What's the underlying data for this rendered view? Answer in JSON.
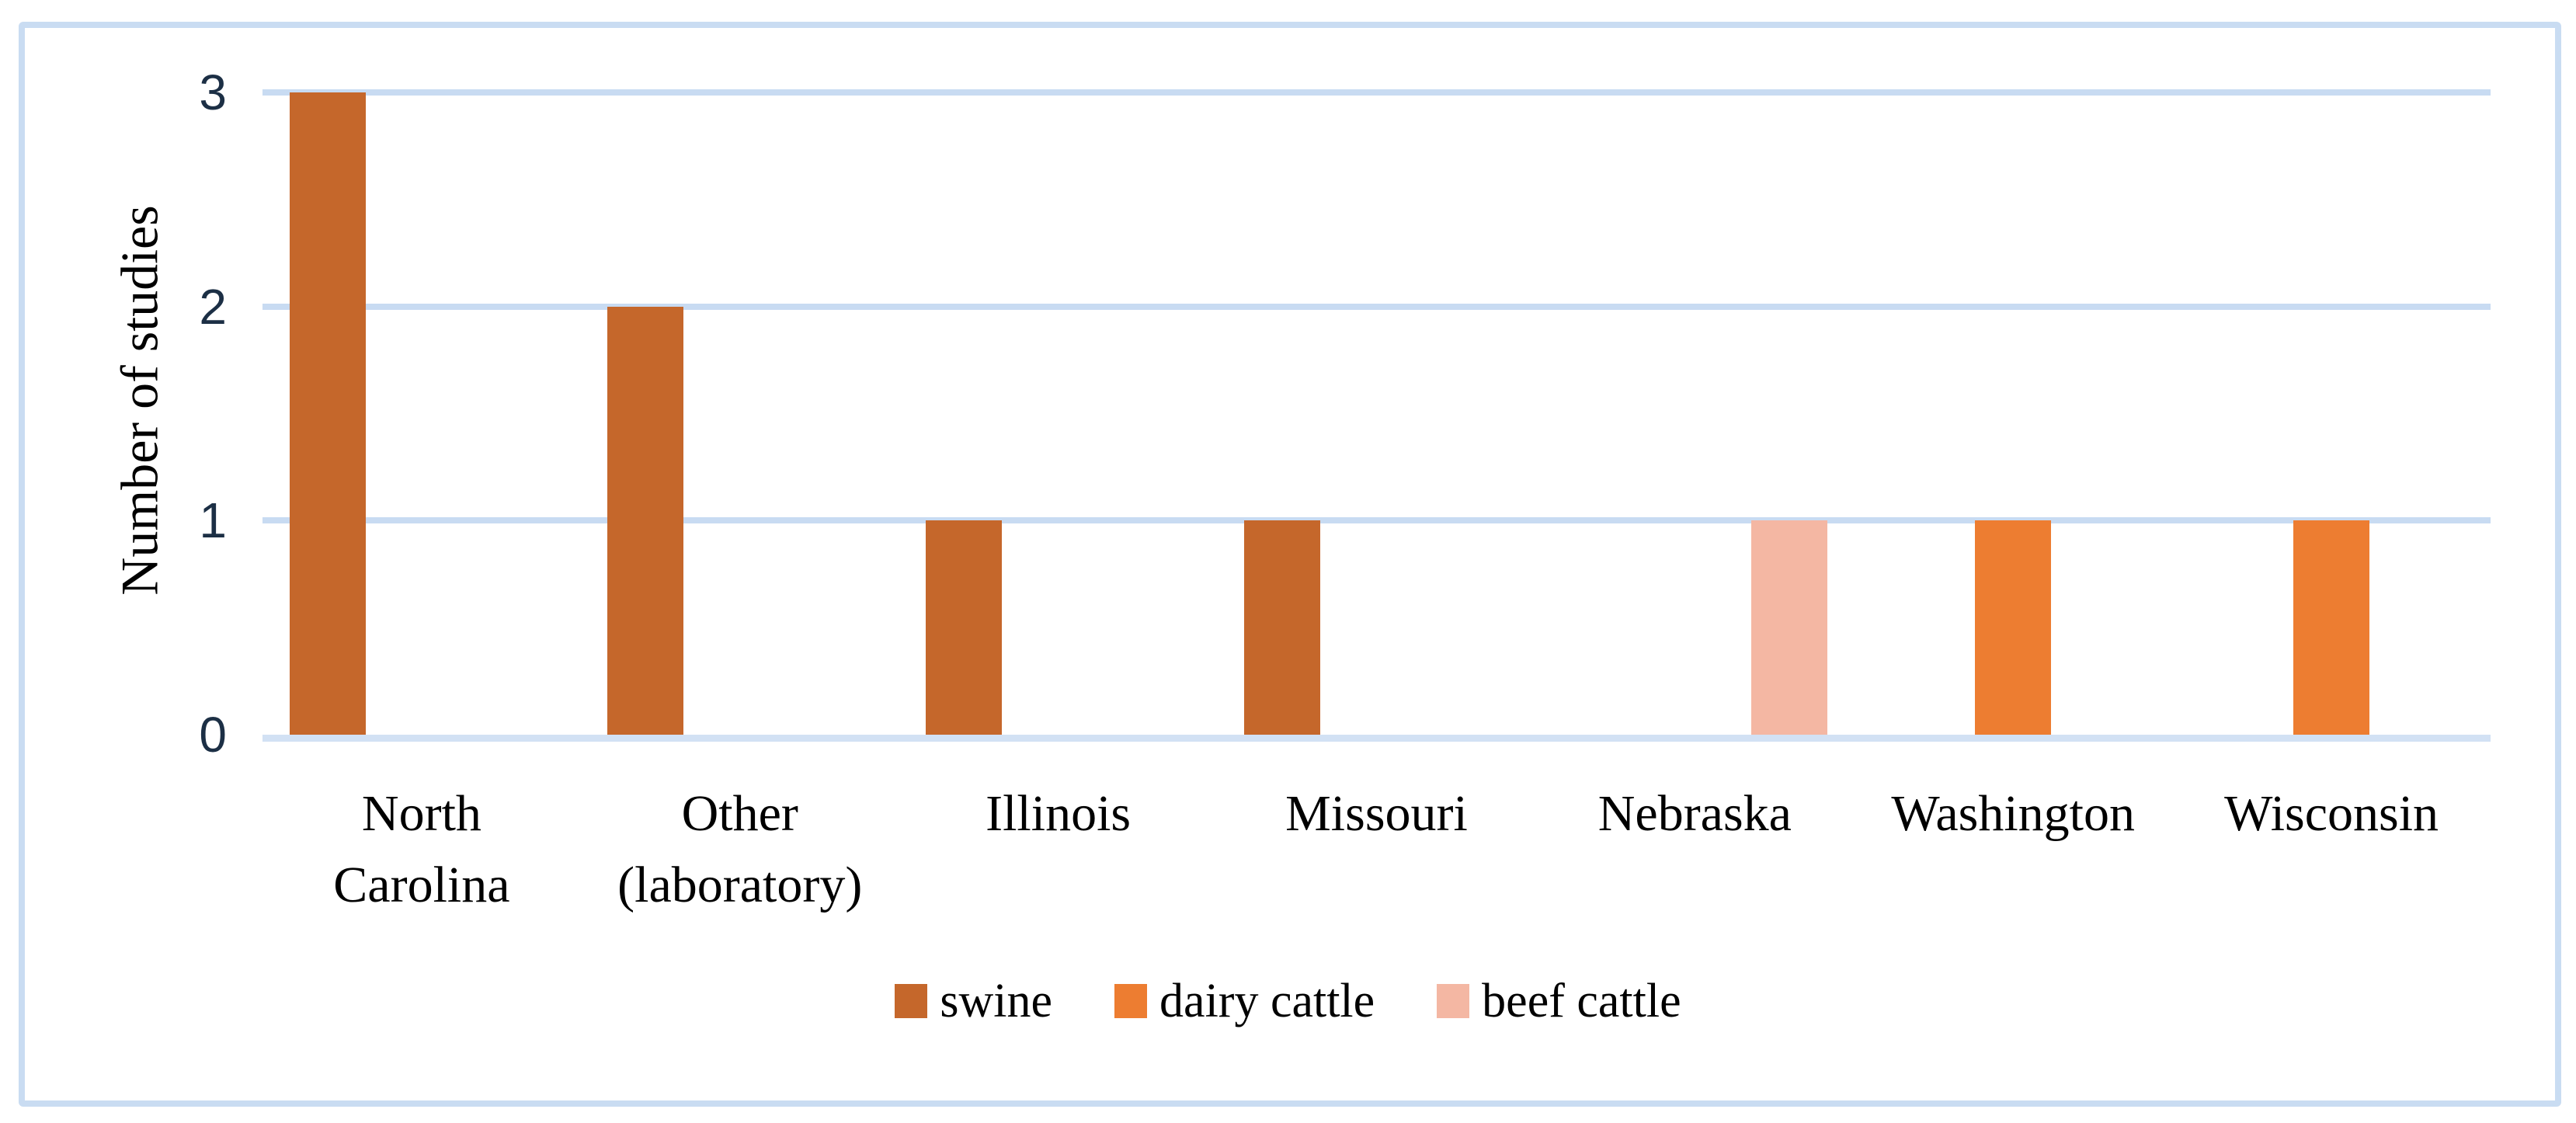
{
  "figure": {
    "background": "#FFFFFF",
    "border_color": "#C9DCF2"
  },
  "chart_data": {
    "type": "bar",
    "title": "",
    "xlabel": "",
    "ylabel": "Number of studies",
    "ylim": [
      0,
      3
    ],
    "yticks": [
      "0",
      "1",
      "2",
      "3"
    ],
    "grid": true,
    "legend_position": "bottom-center",
    "categories": [
      "North Carolina",
      "Other (laboratory)",
      "Illinois",
      "Missouri",
      "Nebraska",
      "Washington",
      "Wisconsin"
    ],
    "category_label_lines": [
      [
        "North",
        "Carolina"
      ],
      [
        "Other",
        "(laboratory)"
      ],
      [
        "Illinois"
      ],
      [
        "Missouri"
      ],
      [
        "Nebraska"
      ],
      [
        "Washington"
      ],
      [
        "Wisconsin"
      ]
    ],
    "series": [
      {
        "name": "swine",
        "color": "#C5672B",
        "values": [
          3,
          2,
          1,
          1,
          0,
          0,
          0
        ]
      },
      {
        "name": "dairy cattle",
        "color": "#ED7D31",
        "values": [
          0,
          0,
          0,
          0,
          0,
          1,
          1
        ]
      },
      {
        "name": "beef cattle",
        "color": "#F4B7A3",
        "values": [
          0,
          0,
          0,
          0,
          1,
          0,
          0
        ]
      }
    ],
    "legend": [
      {
        "label": "swine",
        "color": "#C5672B"
      },
      {
        "label": "dairy cattle",
        "color": "#ED7D31"
      },
      {
        "label": "beef cattle",
        "color": "#F4B7A3"
      }
    ],
    "gridline_color": "#C8DBF2",
    "axis_line_color": "#D2E1F4",
    "tick_color": "#1C2F45",
    "text_color": "#000000"
  }
}
